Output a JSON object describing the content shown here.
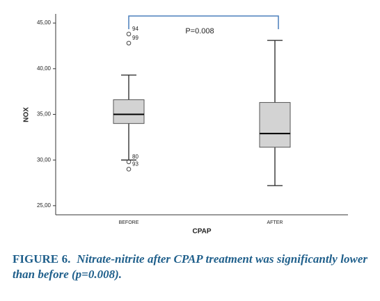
{
  "chart_data": {
    "type": "box",
    "x_label": "CPAP",
    "y_label": "NOX",
    "categories": [
      "BEFORE",
      "AFTER"
    ],
    "boxes": [
      {
        "min": 30.0,
        "q1": 34.0,
        "median": 35.0,
        "q3": 36.6,
        "max": 39.3,
        "outliers": [
          43.8,
          42.8,
          29.8,
          29.0
        ],
        "outlier_labels": [
          "94",
          "99",
          "80",
          "93"
        ]
      },
      {
        "min": 27.2,
        "q1": 31.4,
        "median": 32.9,
        "q3": 36.3,
        "max": 43.1,
        "outliers": [],
        "outlier_labels": []
      }
    ],
    "color": "#d3d3d3",
    "ylim": [
      24,
      46
    ],
    "yticks": [
      {
        "value": 25,
        "label": "25,00"
      },
      {
        "value": 30,
        "label": "30,00"
      },
      {
        "value": 35,
        "label": "35,00"
      },
      {
        "value": 40,
        "label": "40,00"
      },
      {
        "value": 45,
        "label": "45,00"
      }
    ],
    "annotation": "P=0.008"
  },
  "caption": {
    "label": "FIGURE 6.",
    "text": "Nitrate-nitrite after CPAP treatment was significantly lower than before (p=0.008)."
  }
}
